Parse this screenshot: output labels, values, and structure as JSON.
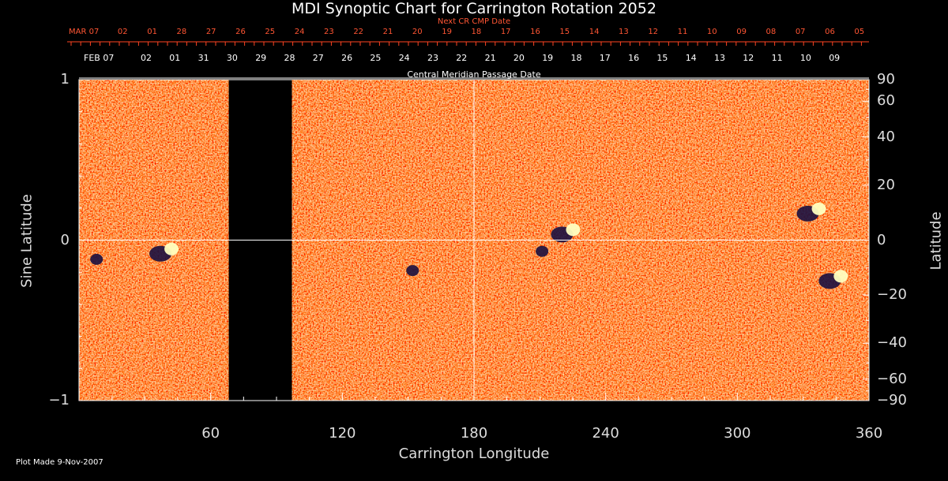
{
  "chart_data": {
    "type": "heatmap",
    "title": "MDI Synoptic Chart for Carrington Rotation 2052",
    "top_axis_red_title": "Next CR CMP Date",
    "top_axis_white_title": "Central Meridian Passage Date",
    "red_date_ticks": [
      "MAR 07",
      "02",
      "01",
      "28",
      "27",
      "26",
      "25",
      "24",
      "23",
      "22",
      "21",
      "20",
      "19",
      "18",
      "17",
      "16",
      "15",
      "14",
      "13",
      "12",
      "11",
      "10",
      "09",
      "08",
      "07",
      "06",
      "05"
    ],
    "white_date_ticks": [
      "FEB 07",
      "02",
      "01",
      "31",
      "30",
      "29",
      "28",
      "27",
      "26",
      "25",
      "24",
      "23",
      "22",
      "21",
      "20",
      "19",
      "18",
      "17",
      "16",
      "15",
      "14",
      "13",
      "12",
      "11",
      "10",
      "09"
    ],
    "xlabel": "Carrington Longitude",
    "ylabel_left": "Sine Latitude",
    "ylabel_right": "Latitude",
    "xlim": [
      0,
      360
    ],
    "ylim": [
      -1,
      1
    ],
    "x_ticks": [
      60,
      120,
      180,
      240,
      300,
      360
    ],
    "y_ticks_left": [
      "1",
      "0",
      "−1"
    ],
    "y_ticks_right": [
      "90",
      "60",
      "40",
      "20",
      "0",
      "−20",
      "−40",
      "−60",
      "−90"
    ],
    "data_gap_longitude": [
      69,
      97
    ],
    "grid": true,
    "colors": {
      "background_field": "#ff5a1a",
      "positive": "#ffffc0",
      "negative": "#1a1040"
    },
    "active_regions": [
      {
        "lon": 40,
        "sinlat": -0.07,
        "polarity": "bipolar"
      },
      {
        "lon": 8,
        "sinlat": -0.12,
        "polarity": "negative"
      },
      {
        "lon": 152,
        "sinlat": -0.19,
        "polarity": "negative"
      },
      {
        "lon": 223,
        "sinlat": 0.05,
        "polarity": "bipolar"
      },
      {
        "lon": 211,
        "sinlat": -0.07,
        "polarity": "negative"
      },
      {
        "lon": 335,
        "sinlat": 0.18,
        "polarity": "bipolar"
      },
      {
        "lon": 345,
        "sinlat": -0.24,
        "polarity": "bipolar"
      }
    ]
  },
  "footer": {
    "plot_made": "Plot Made  9-Nov-2007"
  }
}
